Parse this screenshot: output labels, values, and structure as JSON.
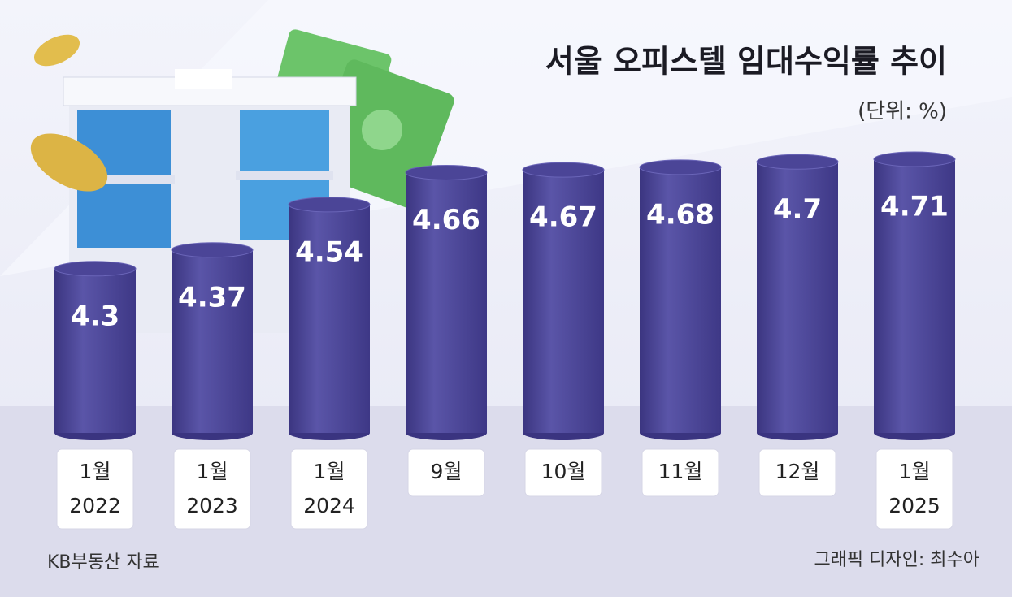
{
  "chart_data": {
    "type": "bar",
    "title": "서울 오피스텔 임대수익률 추이",
    "subtitle": "(단위: %)",
    "source": "KB부동산 자료",
    "credit": "그래픽 디자인: 최수아",
    "categories": [
      [
        "1월",
        "2022"
      ],
      [
        "1월",
        "2023"
      ],
      [
        "1월",
        "2024"
      ],
      [
        "9월"
      ],
      [
        "10월"
      ],
      [
        "11월"
      ],
      [
        "12월"
      ],
      [
        "1월",
        "2025"
      ]
    ],
    "values": [
      4.3,
      4.37,
      4.54,
      4.66,
      4.67,
      4.68,
      4.7,
      4.71
    ],
    "color": "#4b4597"
  }
}
